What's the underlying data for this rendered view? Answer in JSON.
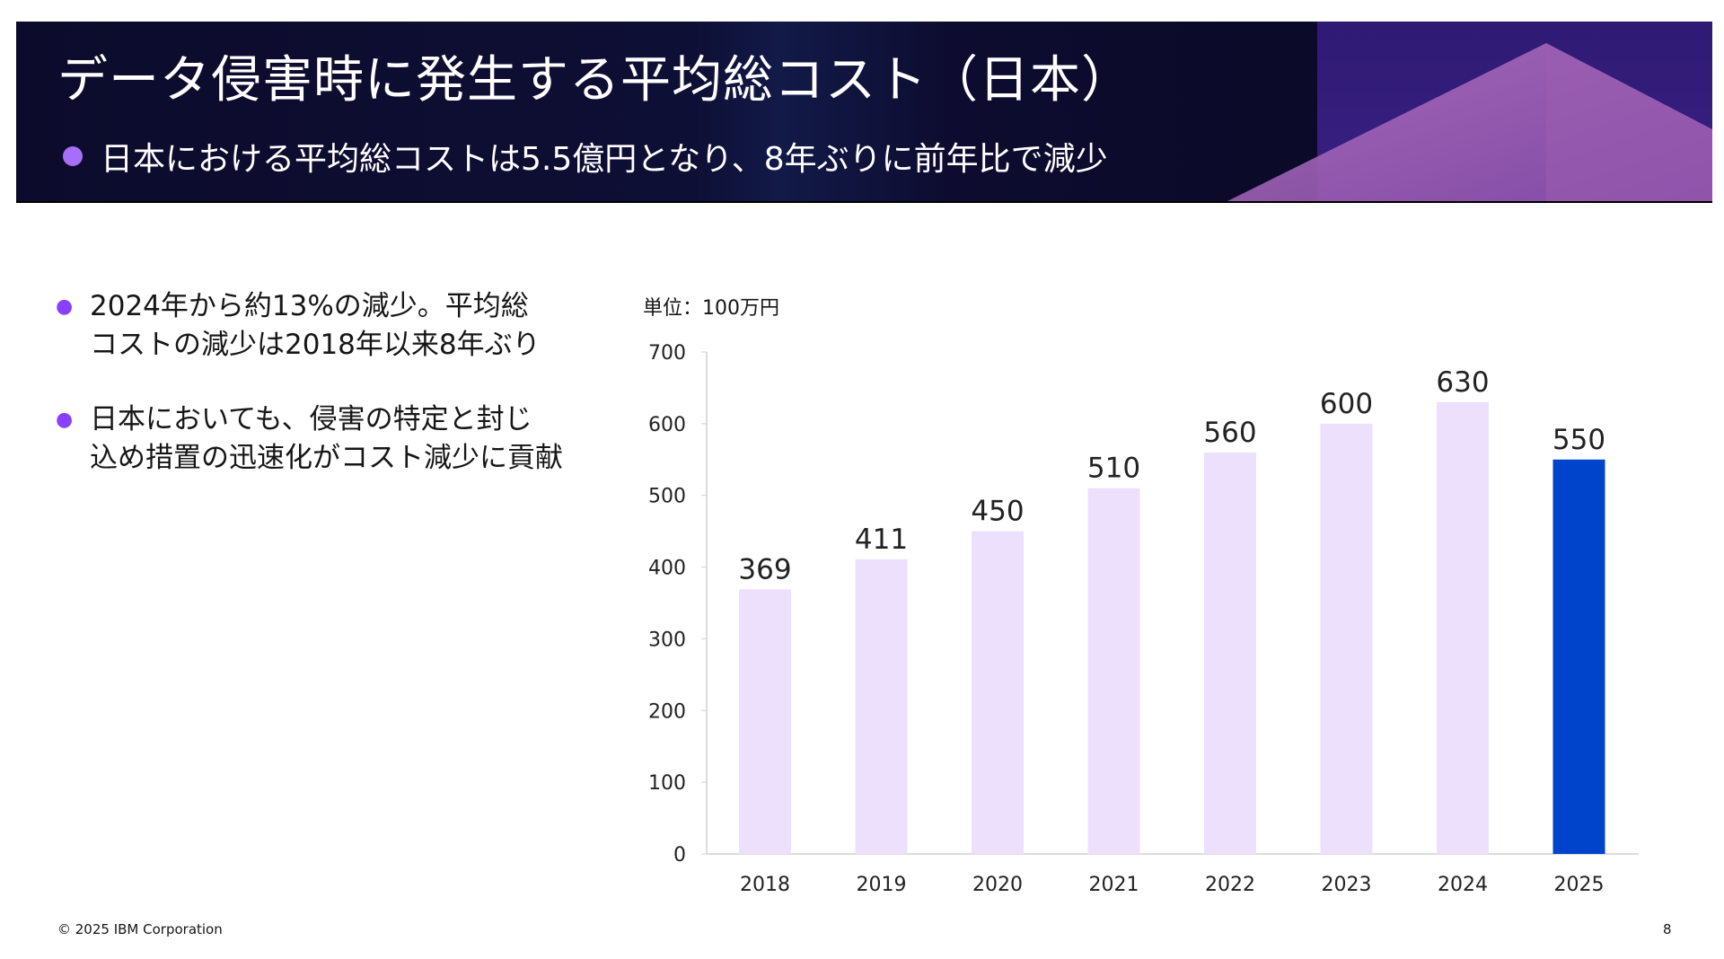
{
  "header": {
    "title": "データ侵害時に発生する平均総コスト（日本）",
    "subtitle": "日本における平均総コストは5.5億円となり、8年ぶりに前年比で減少"
  },
  "bullets": [
    {
      "lines": [
        "2024年から約13%の減少。平均総",
        "コストの減少は2018年以来8年ぶり"
      ]
    },
    {
      "lines": [
        "日本においても、侵害の特定と封じ",
        "込め措置の迅速化がコスト減少に貢献"
      ]
    }
  ],
  "footer": {
    "copyright": "© 2025 IBM Corporation",
    "page": "8"
  },
  "chart_data": {
    "type": "bar",
    "unit_label": "単位：100万円",
    "categories": [
      "2018",
      "2019",
      "2020",
      "2021",
      "2022",
      "2023",
      "2024",
      "2025"
    ],
    "values": [
      369,
      411,
      450,
      510,
      560,
      600,
      630,
      550
    ],
    "ylim": [
      0,
      700
    ],
    "yticks": [
      "0",
      "100",
      "200",
      "300",
      "400",
      "500",
      "600",
      "700"
    ],
    "grid": false,
    "colors": {
      "default": "#ece0fc",
      "highlight": "#0044cc"
    },
    "highlight_index": 7
  }
}
